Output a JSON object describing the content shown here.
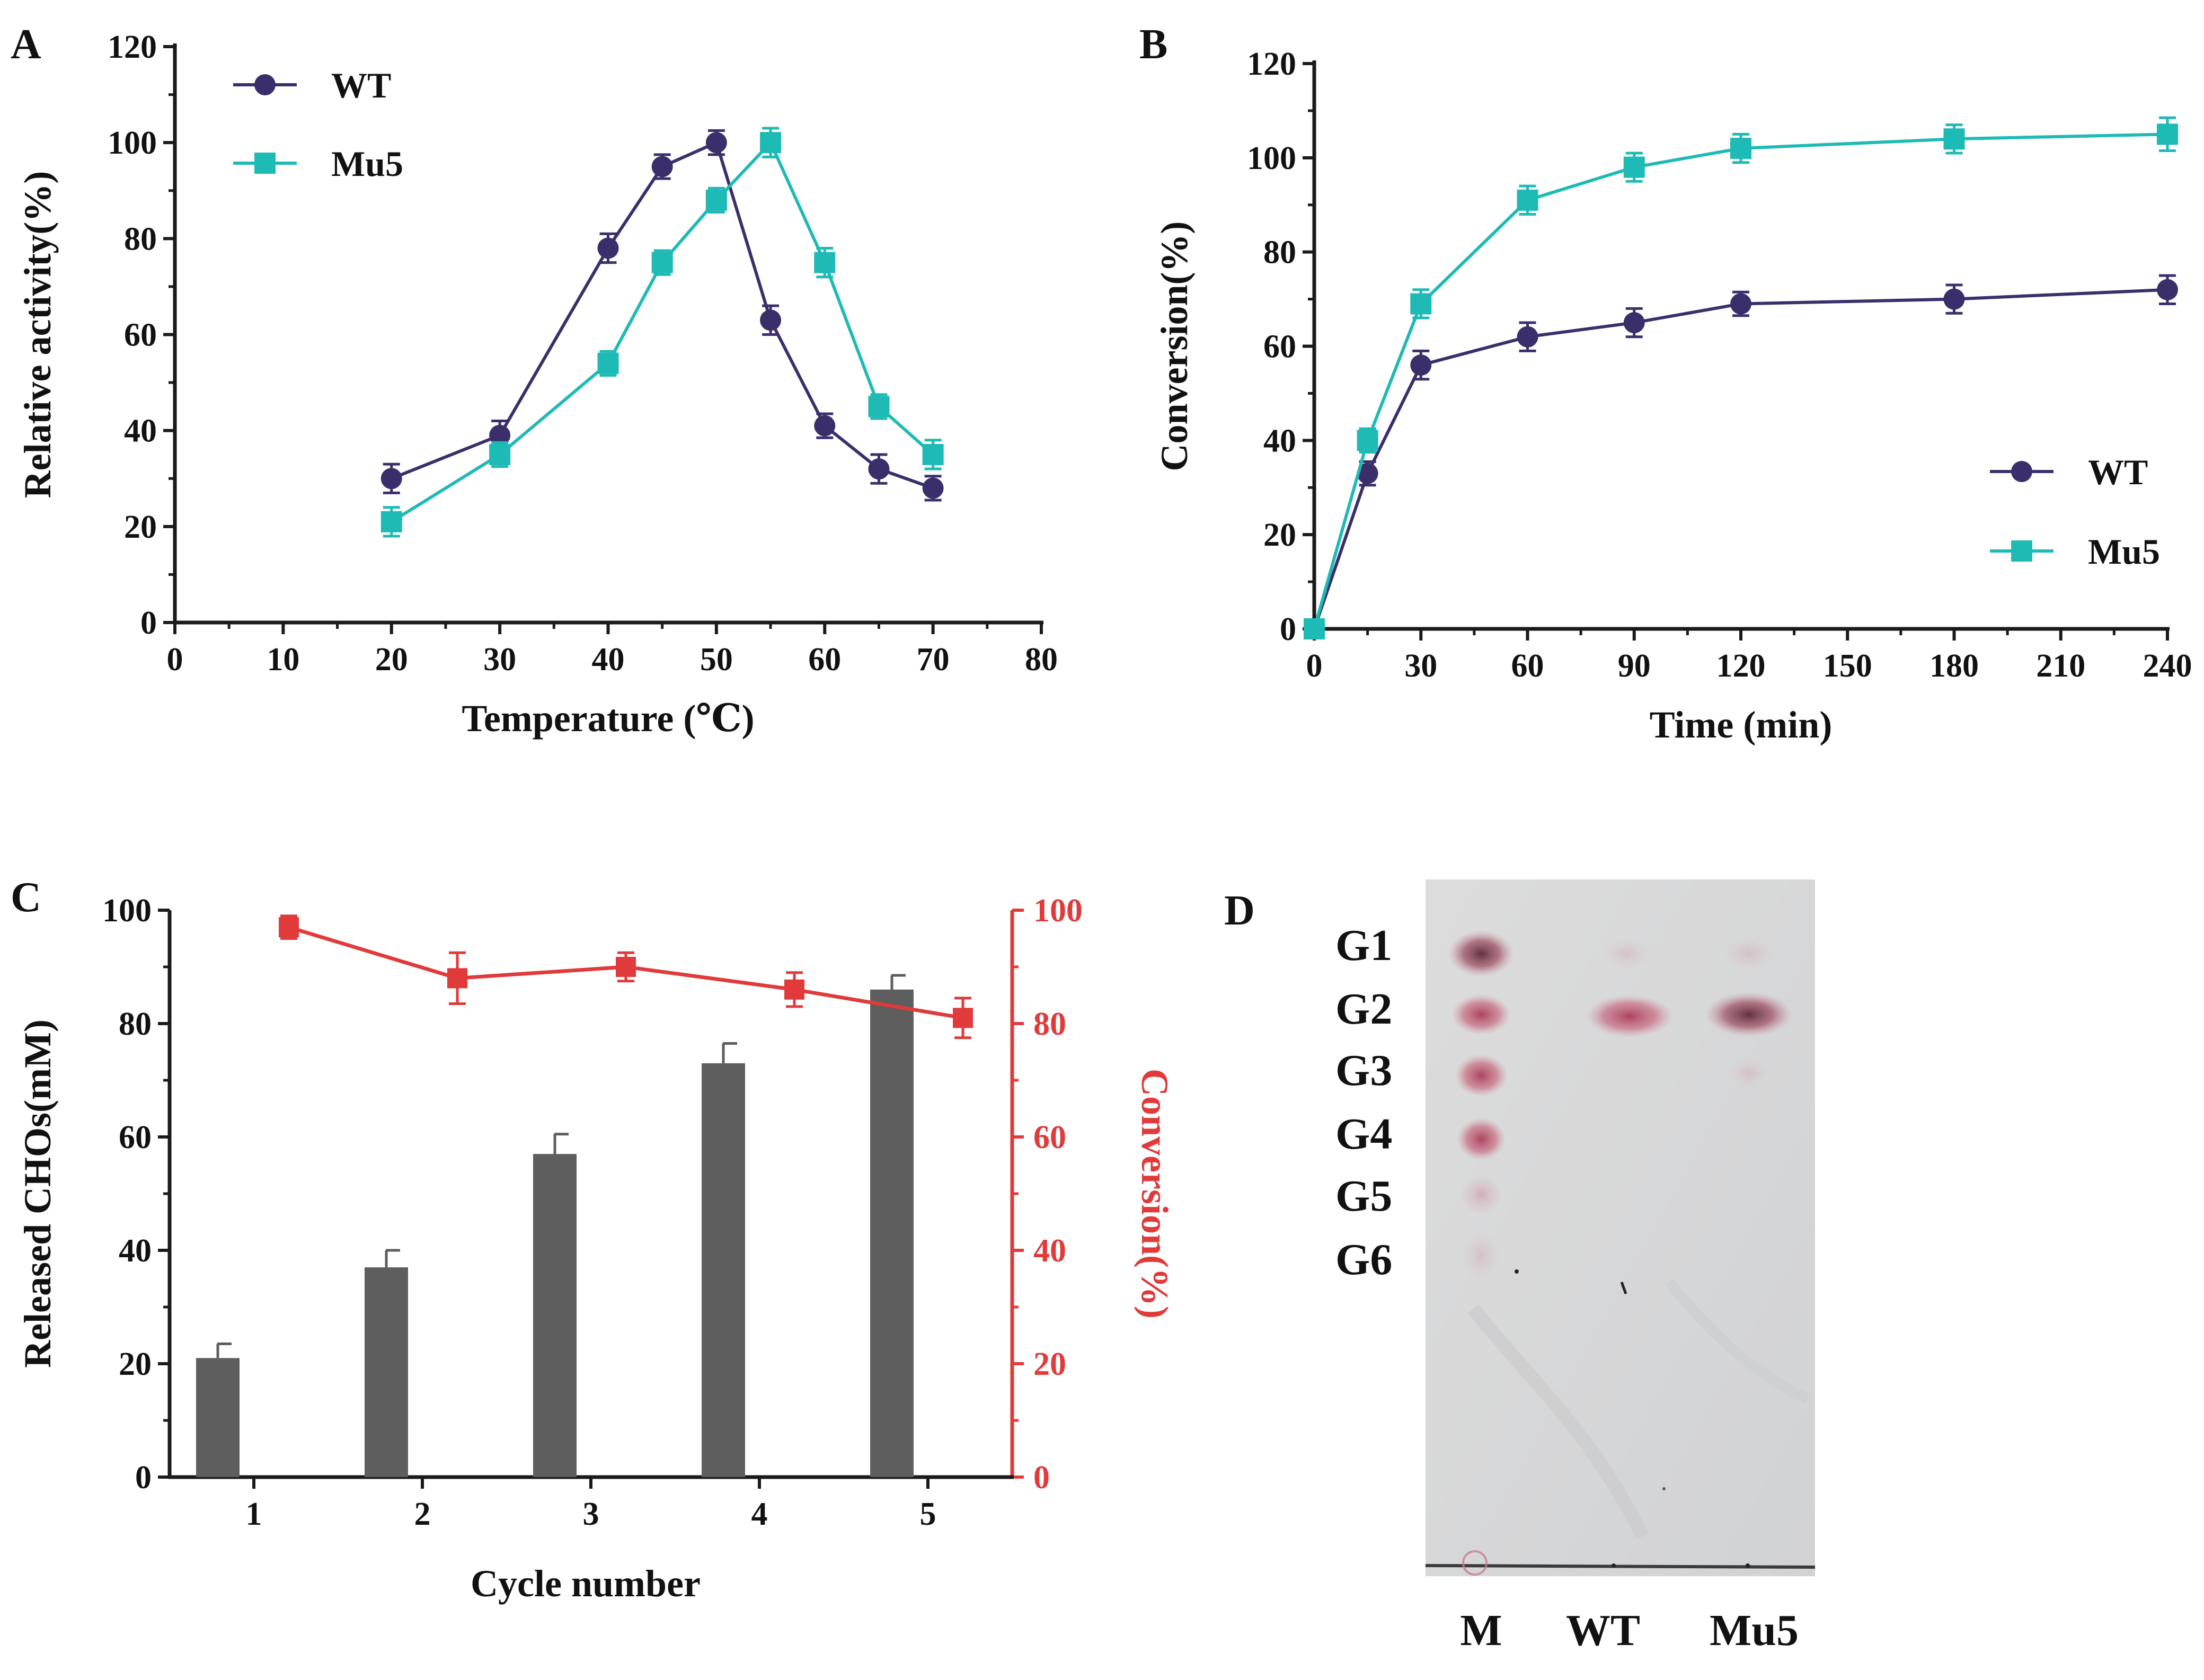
{
  "chart_data": [
    {
      "panel": "A",
      "type": "line",
      "xlabel": "Temperature (℃)",
      "ylabel": "Relative activity(%)",
      "xlim": [
        0,
        80
      ],
      "ylim": [
        0,
        120
      ],
      "xticks": [
        0,
        10,
        20,
        30,
        40,
        50,
        60,
        70,
        80
      ],
      "yticks": [
        0,
        20,
        40,
        60,
        80,
        100,
        120
      ],
      "legend_position": "top-left",
      "series": [
        {
          "name": "WT",
          "color": "#3b2f6b",
          "marker": "circle",
          "x": [
            20,
            30,
            40,
            45,
            50,
            55,
            60,
            65,
            70
          ],
          "y": [
            30,
            39,
            78,
            95,
            100,
            63,
            41,
            32,
            28
          ],
          "err": [
            3,
            3,
            3,
            2.5,
            2.5,
            3,
            2.5,
            3,
            2.5
          ]
        },
        {
          "name": "Mu5",
          "color": "#1ebab5",
          "marker": "square",
          "x": [
            20,
            30,
            40,
            45,
            50,
            55,
            60,
            65,
            70
          ],
          "y": [
            21,
            35,
            54,
            75,
            88,
            100,
            75,
            45,
            35
          ],
          "err": [
            3,
            2.5,
            2.5,
            2.5,
            2.5,
            3,
            3,
            2.5,
            3
          ]
        }
      ]
    },
    {
      "panel": "B",
      "type": "line",
      "xlabel": "Time (min)",
      "ylabel": "Conversion(%)",
      "xlim": [
        0,
        240
      ],
      "ylim": [
        0,
        120
      ],
      "xticks": [
        0,
        30,
        60,
        90,
        120,
        150,
        180,
        210,
        240
      ],
      "yticks": [
        0,
        20,
        40,
        60,
        80,
        100,
        120
      ],
      "legend_position": "bottom-right",
      "series": [
        {
          "name": "WT",
          "color": "#3b2f6b",
          "marker": "circle",
          "x": [
            0,
            15,
            30,
            60,
            90,
            120,
            180,
            240
          ],
          "y": [
            0,
            33,
            56,
            62,
            65,
            69,
            70,
            72
          ],
          "err": [
            0,
            2.5,
            3,
            3,
            3,
            2.5,
            3,
            3
          ]
        },
        {
          "name": "Mu5",
          "color": "#1ebab5",
          "marker": "square",
          "x": [
            0,
            15,
            30,
            60,
            90,
            120,
            180,
            240
          ],
          "y": [
            0,
            40,
            69,
            91,
            98,
            102,
            104,
            105
          ],
          "err": [
            0,
            2.5,
            3,
            3,
            3,
            3,
            3,
            3.5
          ]
        }
      ]
    },
    {
      "panel": "C",
      "type": "bar+line",
      "xlabel": "Cycle number",
      "ylabel": "Released CHOs(mM)",
      "y2label": "Conversion(%)",
      "categories": [
        "1",
        "2",
        "3",
        "4",
        "5"
      ],
      "ylim": [
        0,
        100
      ],
      "y2lim": [
        0,
        100
      ],
      "yticks": [
        0,
        20,
        40,
        60,
        80,
        100
      ],
      "y2ticks": [
        0,
        20,
        40,
        60,
        80,
        100
      ],
      "bars": {
        "name": "Released CHOs",
        "color": "#5e5e5e",
        "values": [
          21,
          37,
          57,
          73,
          86
        ],
        "err": [
          2.5,
          3,
          3.5,
          3.5,
          2.5
        ]
      },
      "line": {
        "name": "Conversion",
        "color": "#e03a3a",
        "values": [
          97,
          88,
          90,
          86,
          81
        ],
        "err": [
          2,
          4.5,
          2.5,
          3,
          3.5
        ]
      }
    },
    {
      "panel": "D",
      "type": "tlc_image",
      "band_labels": [
        "G1",
        "G2",
        "G3",
        "G4",
        "G5",
        "G6"
      ],
      "lane_labels": [
        "M",
        "WT",
        "Mu5"
      ]
    }
  ]
}
